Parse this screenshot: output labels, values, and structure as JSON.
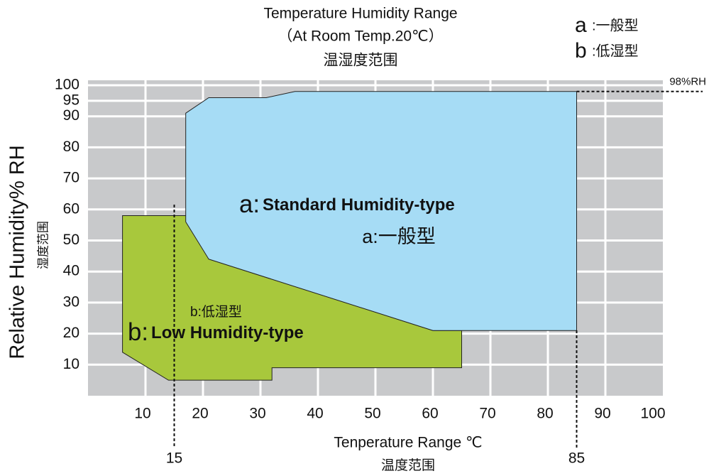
{
  "chart_data": {
    "type": "polygon",
    "title": "Temperature Humidity Range",
    "subtitle": "（At Room Temp.20℃）",
    "subtitle_cn": "温湿度范围",
    "x_label": "Tenperature Range ℃",
    "x_label_cn": "温度范围",
    "y_label": "Relative Humidity% RH",
    "y_label_cn": "湿度范围",
    "xlim": [
      0,
      100
    ],
    "ylim": [
      0,
      100
    ],
    "xticks": [
      10,
      20,
      30,
      40,
      50,
      60,
      70,
      80,
      90,
      100
    ],
    "yticks": [
      10,
      20,
      30,
      40,
      50,
      60,
      70,
      80,
      90,
      95,
      100
    ],
    "grid": true,
    "background": "#c8c9cb",
    "series": [
      {
        "name": "b",
        "legend_label": ":低湿型",
        "region_prefix": "b:",
        "region_label": "Low Humidity-type",
        "region_label_cn": "b:低湿型",
        "color": "#a8c83c",
        "x": [
          6,
          17,
          21,
          60,
          65,
          65,
          32,
          32,
          14,
          6
        ],
        "values": [
          58,
          58,
          44,
          21,
          21,
          9,
          9,
          5,
          5,
          14
        ]
      },
      {
        "name": "a",
        "legend_label": ":一般型",
        "region_prefix": "a:",
        "region_label": "Standard Humidity-type",
        "region_label_cn": "a:一般型",
        "color": "#a6dcf5",
        "x": [
          17,
          21,
          31,
          36,
          85,
          85,
          60,
          21,
          17
        ],
        "values": [
          91,
          96,
          96,
          98,
          98,
          21,
          21,
          44,
          56
        ]
      }
    ],
    "vlines": [
      15,
      85
    ],
    "hlines": [
      {
        "value": 98,
        "label": "98%RH"
      }
    ]
  }
}
